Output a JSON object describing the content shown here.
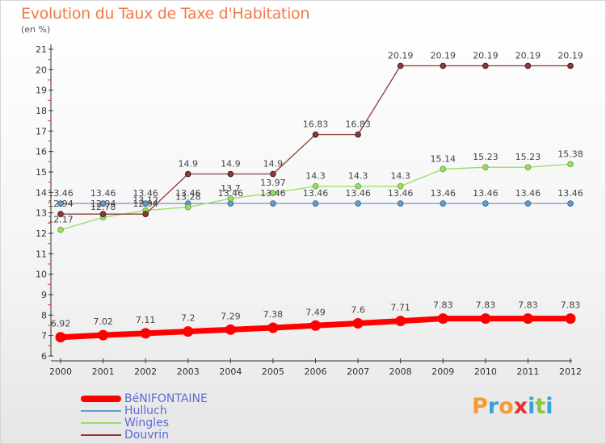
{
  "title": "Evolution du Taux de Taxe d'Habitation",
  "subtitle": "(en %)",
  "logo": {
    "letters": [
      "P",
      "r",
      "o",
      "x",
      "i",
      "t",
      "i"
    ],
    "colors": [
      "#f39b2f",
      "#3aa0dc",
      "#f39b2f",
      "#e2322b",
      "#3aa0dc",
      "#8cc63f",
      "#3aa0dc"
    ]
  },
  "chart_data": {
    "type": "line",
    "x": [
      "2000",
      "2001",
      "2002",
      "2003",
      "2004",
      "2005",
      "2006",
      "2007",
      "2008",
      "2009",
      "2010",
      "2011",
      "2012"
    ],
    "ylim": [
      6,
      21
    ],
    "yticks": [
      6,
      7,
      8,
      9,
      10,
      11,
      12,
      13,
      14,
      15,
      16,
      17,
      18,
      19,
      20,
      21
    ],
    "grid": false,
    "legend_position": "bottom-left",
    "series": [
      {
        "name": "BéNIFONTAINE",
        "color": "#ff0000",
        "values": [
          6.92,
          7.02,
          7.11,
          7.2,
          7.29,
          7.38,
          7.49,
          7.6,
          7.71,
          7.83,
          7.83,
          7.83,
          7.83
        ]
      },
      {
        "name": "Hulluch",
        "color": "#6699cc",
        "values": [
          13.46,
          13.46,
          13.46,
          13.46,
          13.46,
          13.46,
          13.46,
          13.46,
          13.46,
          13.46,
          13.46,
          13.46,
          13.46
        ]
      },
      {
        "name": "Wingles",
        "color": "#99dd66",
        "values": [
          12.17,
          12.78,
          13.12,
          13.28,
          13.7,
          13.97,
          14.3,
          14.3,
          14.3,
          15.14,
          15.23,
          15.23,
          15.38
        ]
      },
      {
        "name": "Douvrin",
        "color": "#8b3a3a",
        "values": [
          12.94,
          12.94,
          12.94,
          14.9,
          14.9,
          14.9,
          16.83,
          16.83,
          20.19,
          20.19,
          20.19,
          20.19,
          20.19
        ]
      }
    ]
  }
}
